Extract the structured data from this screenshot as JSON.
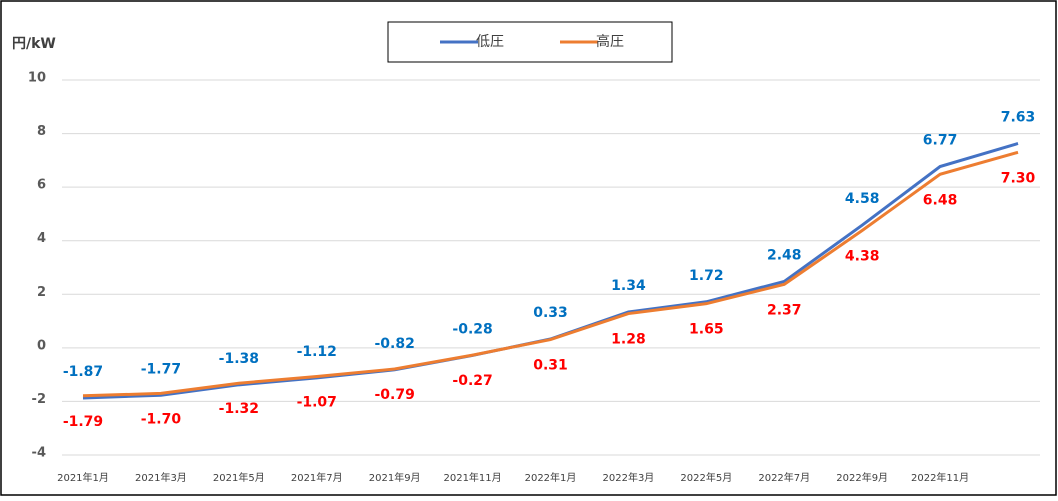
{
  "chart_data": {
    "type": "line",
    "y_label": "円/kW",
    "categories": [
      "2021年1月",
      "2021年3月",
      "2021年5月",
      "2021年7月",
      "2021年9月",
      "2021年11月",
      "2022年1月",
      "2022年3月",
      "2022年5月",
      "2022年7月",
      "2022年9月",
      "2022年11月",
      null
    ],
    "series": [
      {
        "name": "低圧",
        "color": "#4472c4",
        "label_color": "#0070c0",
        "values": [
          -1.87,
          -1.77,
          -1.38,
          -1.12,
          -0.82,
          -0.28,
          0.33,
          1.34,
          1.72,
          2.48,
          4.58,
          6.77,
          7.63
        ],
        "value_labels": [
          "-1.87",
          "-1.77",
          "-1.38",
          "-1.12",
          "-0.82",
          "-0.28",
          "0.33",
          "1.34",
          "1.72",
          "2.48",
          "4.58",
          "6.77",
          "7.63"
        ]
      },
      {
        "name": "高圧",
        "color": "#ed7d31",
        "label_color": "#ff0000",
        "values": [
          -1.79,
          -1.7,
          -1.32,
          -1.07,
          -0.79,
          -0.27,
          0.31,
          1.28,
          1.65,
          2.37,
          4.38,
          6.48,
          7.3
        ],
        "value_labels": [
          "-1.79",
          "-1.70",
          "-1.32",
          "-1.07",
          "-0.79",
          "-0.27",
          "0.31",
          "1.28",
          "1.65",
          "2.37",
          "4.38",
          "6.48",
          "7.30"
        ]
      }
    ],
    "ylim": [
      -4,
      10
    ],
    "yticks": [
      -4,
      -2,
      0,
      2,
      4,
      6,
      8,
      10
    ],
    "grid": true,
    "legend": "top"
  }
}
